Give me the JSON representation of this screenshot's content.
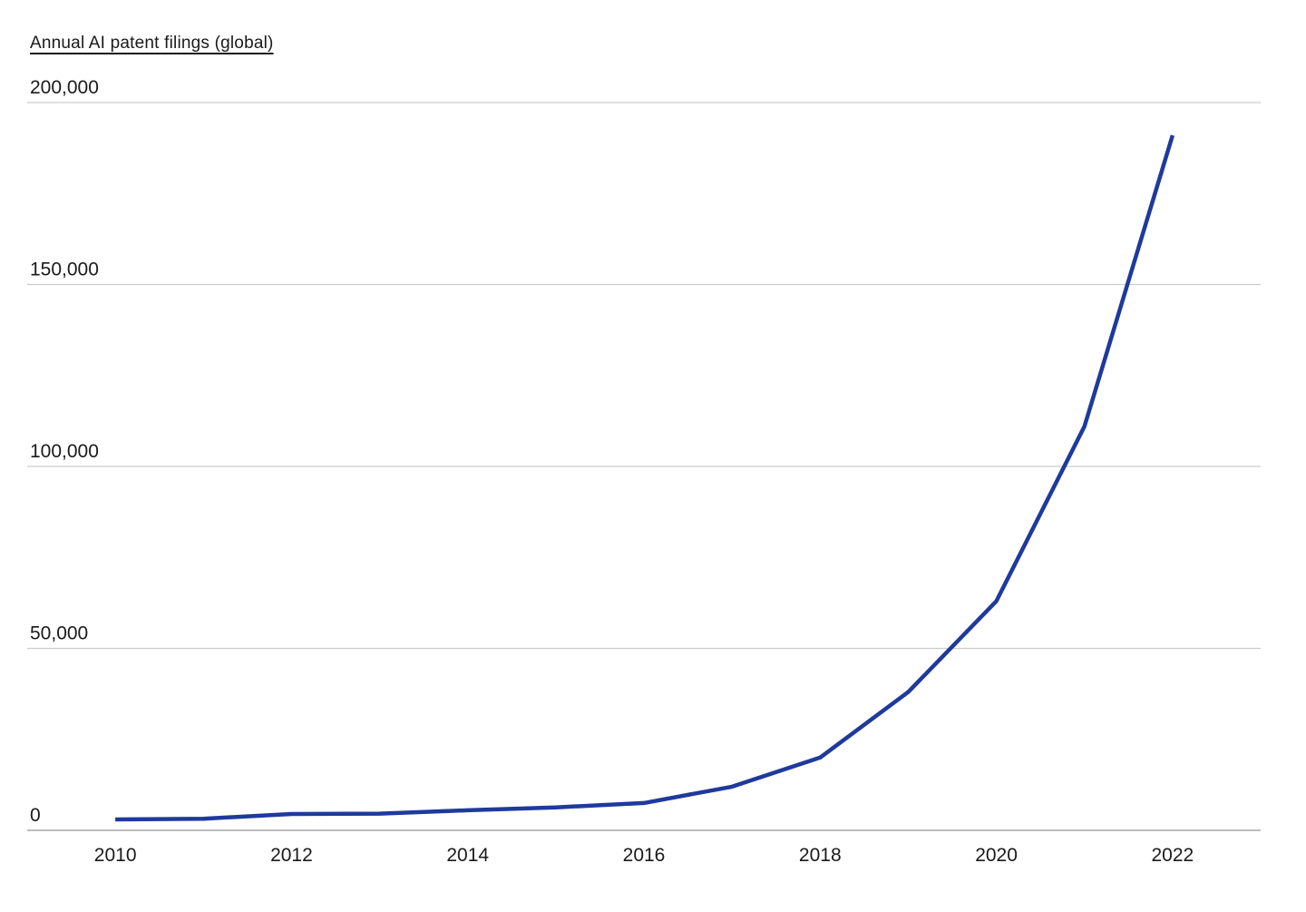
{
  "chart_data": {
    "type": "line",
    "title": "Annual AI patent filings (global)",
    "x": [
      2010,
      2011,
      2012,
      2013,
      2014,
      2015,
      2016,
      2017,
      2018,
      2019,
      2020,
      2021,
      2022
    ],
    "values": [
      3000,
      3200,
      4500,
      4600,
      5500,
      6300,
      7500,
      12000,
      20000,
      38000,
      63000,
      111000,
      191000
    ],
    "series": [
      {
        "name": "Annual AI patent filings (global)",
        "values": [
          3000,
          3200,
          4500,
          4600,
          5500,
          6300,
          7500,
          12000,
          20000,
          38000,
          63000,
          111000,
          191000
        ]
      }
    ],
    "xlabel": "",
    "ylabel": "",
    "xlim": [
      2009,
      2023
    ],
    "ylim": [
      0,
      200000
    ],
    "x_ticks": [
      2010,
      2012,
      2014,
      2016,
      2018,
      2020,
      2022
    ],
    "x_tick_labels": [
      "2010",
      "2012",
      "2014",
      "2016",
      "2018",
      "2020",
      "2022"
    ],
    "y_ticks": [
      0,
      50000,
      100000,
      150000,
      200000
    ],
    "y_tick_labels": [
      "0",
      "50,000",
      "100,000",
      "150,000",
      "200,000"
    ],
    "grid": "horizontal-only",
    "legend": "none",
    "colors": {
      "line": "#1f3a9c",
      "gridline": "#cccccc",
      "axis_line": "#b3b3b3",
      "text": "#1a1a1a",
      "background": "#ffffff"
    }
  }
}
